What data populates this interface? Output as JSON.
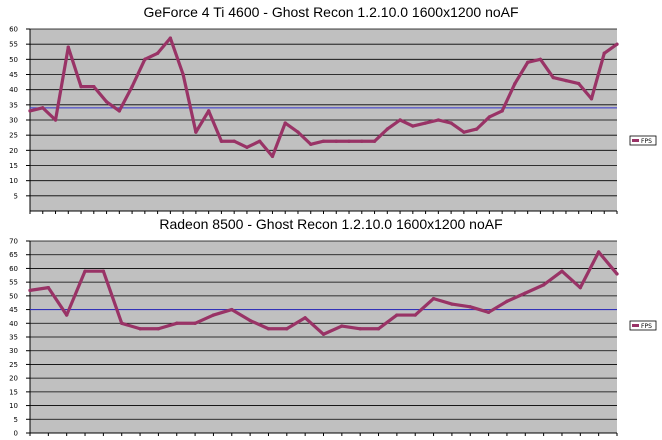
{
  "chart_data": [
    {
      "type": "line",
      "title": "GeForce 4 Ti 4600 - Ghost Recon 1.2.10.0 1600x1200 noAF",
      "xlabel": "",
      "ylabel": "",
      "ylim": [
        0,
        60
      ],
      "yticks": [
        5,
        10,
        15,
        20,
        25,
        30,
        35,
        40,
        45,
        50,
        55,
        60
      ],
      "grid": true,
      "legend_position": "right",
      "series": [
        {
          "name": "FPS",
          "color": "#993366",
          "values": [
            33,
            34,
            30,
            54,
            41,
            41,
            36,
            33,
            41,
            50,
            52,
            57,
            45,
            26,
            33,
            23,
            23,
            21,
            23,
            18,
            29,
            26,
            22,
            23,
            23,
            23,
            23,
            23,
            27,
            30,
            28,
            29,
            30,
            29,
            26,
            27,
            31,
            33,
            42,
            49,
            50,
            44,
            43,
            42,
            37,
            52,
            55
          ]
        }
      ],
      "reference_lines": [
        {
          "y": 34,
          "color": "#3333cc"
        }
      ]
    },
    {
      "type": "line",
      "title": "Radeon 8500 - Ghost Recon 1.2.10.0 1600x1200 noAF",
      "xlabel": "",
      "ylabel": "",
      "ylim": [
        0,
        70
      ],
      "yticks": [
        0,
        5,
        10,
        15,
        20,
        25,
        30,
        35,
        40,
        45,
        50,
        55,
        60,
        65,
        70
      ],
      "grid": true,
      "legend_position": "right",
      "series": [
        {
          "name": "FPS",
          "color": "#993366",
          "values": [
            52,
            53,
            43,
            59,
            59,
            40,
            38,
            38,
            40,
            40,
            43,
            45,
            41,
            38,
            38,
            42,
            36,
            39,
            38,
            38,
            43,
            43,
            49,
            47,
            46,
            44,
            48,
            51,
            54,
            59,
            53,
            66,
            58
          ]
        }
      ],
      "reference_lines": [
        {
          "y": 45,
          "color": "#3333cc"
        }
      ]
    }
  ]
}
